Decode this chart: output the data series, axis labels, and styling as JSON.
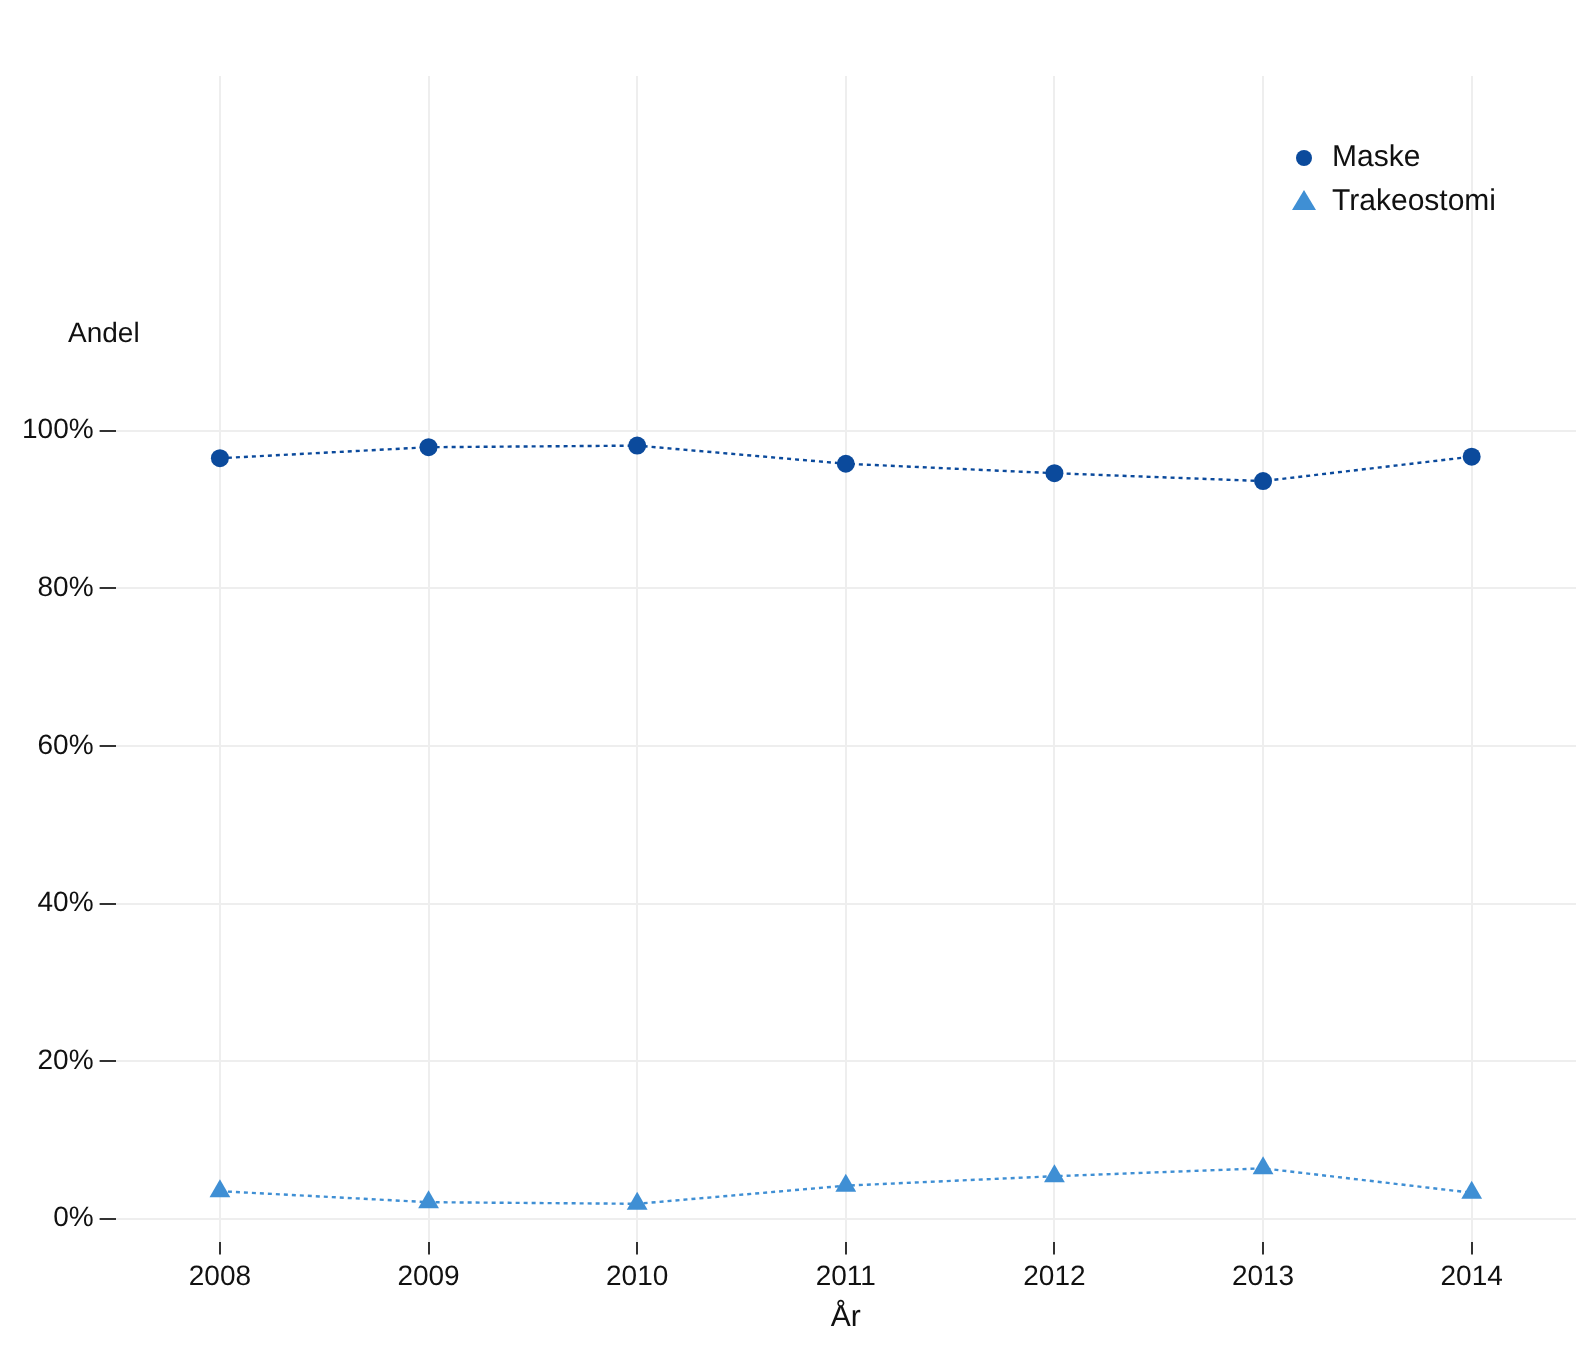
{
  "chart_data": {
    "type": "line",
    "xlabel": "År",
    "ylabel": "Andel",
    "categories": [
      "2008",
      "2009",
      "2010",
      "2011",
      "2012",
      "2013",
      "2014"
    ],
    "series": [
      {
        "name": "Maske",
        "color": "#0b4a9c",
        "marker": "circle",
        "values": [
          96.5,
          97.9,
          98.1,
          95.8,
          94.6,
          93.6,
          96.7
        ]
      },
      {
        "name": "Trakeostomi",
        "color": "#3f8fd4",
        "marker": "triangle",
        "values": [
          3.5,
          2.1,
          1.9,
          4.2,
          5.4,
          6.4,
          3.3
        ]
      }
    ],
    "ylim": [
      -3,
      145
    ],
    "yticks": [
      {
        "value": 0,
        "label": "0%"
      },
      {
        "value": 20,
        "label": "20%"
      },
      {
        "value": 40,
        "label": "40%"
      },
      {
        "value": 60,
        "label": "60%"
      },
      {
        "value": 80,
        "label": "80%"
      },
      {
        "value": 100,
        "label": "100%"
      }
    ],
    "grid": true,
    "legend": "top right",
    "line_style": "dotted"
  }
}
